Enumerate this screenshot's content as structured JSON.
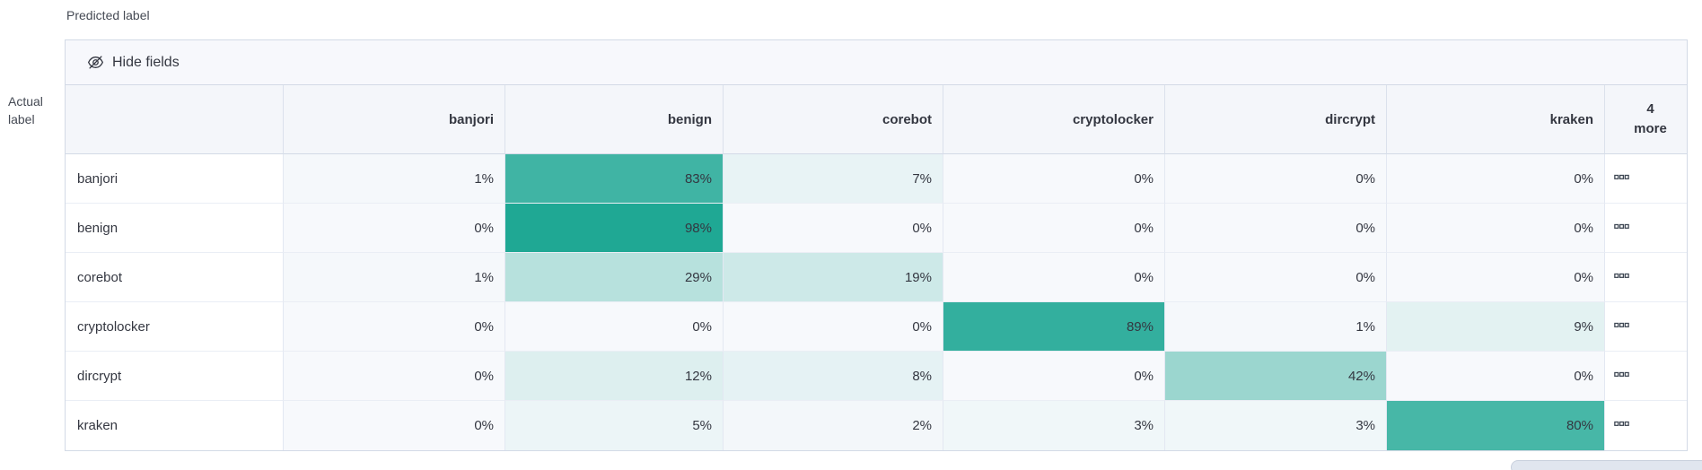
{
  "page": {
    "predicted_axis_label": "Predicted label",
    "actual_axis_label": "Actual label"
  },
  "toolbar": {
    "hide_fields_label": "Hide fields"
  },
  "grid": {
    "more_header_count": "4",
    "more_header_word": "more",
    "more_cell_icon": "boxes-horizontal-icon",
    "hide_fields_icon": "eye-closed-icon"
  },
  "colors": {
    "heat_base": "#1BA692",
    "zero_cell_bg": "#F7F9FC",
    "header_bg": "#F4F6FA",
    "toolbar_bg": "#F7F8FC",
    "outer_border": "#D3DAE6",
    "cell_text": "#343741"
  },
  "chart_data": {
    "type": "heatmap",
    "xlabel": "Predicted label",
    "ylabel": "Actual label",
    "columns": [
      "banjori",
      "benign",
      "corebot",
      "cryptolocker",
      "dircrypt",
      "kraken"
    ],
    "hidden_columns_indicator": "4 more",
    "cell_value_suffix": "%",
    "rows": [
      {
        "label": "banjori",
        "values_percent": [
          1,
          83,
          7,
          0,
          0,
          0
        ]
      },
      {
        "label": "benign",
        "values_percent": [
          0,
          98,
          0,
          0,
          0,
          0
        ]
      },
      {
        "label": "corebot",
        "values_percent": [
          1,
          29,
          19,
          0,
          0,
          0
        ]
      },
      {
        "label": "cryptolocker",
        "values_percent": [
          0,
          0,
          0,
          89,
          1,
          9
        ]
      },
      {
        "label": "dircrypt",
        "values_percent": [
          0,
          12,
          8,
          0,
          42,
          0
        ]
      },
      {
        "label": "kraken",
        "values_percent": [
          0,
          5,
          2,
          3,
          3,
          80
        ]
      }
    ],
    "value_range": [
      0,
      100
    ],
    "heat_scale": "white-to-teal, cell background opacity proportional to percent"
  }
}
